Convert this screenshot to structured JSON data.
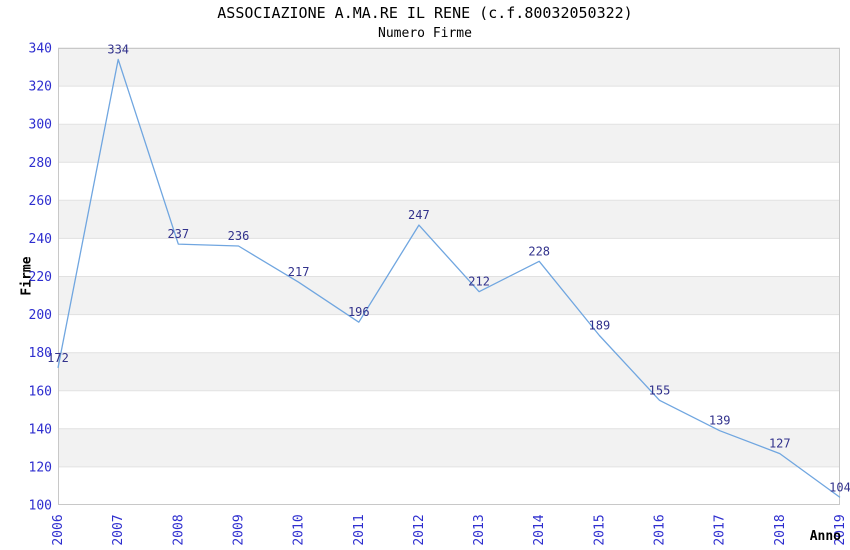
{
  "chart_data": {
    "type": "line",
    "title": "ASSOCIAZIONE A.MA.RE IL RENE (c.f.80032050322)",
    "subtitle": "Numero Firme",
    "xlabel": "Anno",
    "ylabel": "Firme",
    "categories": [
      "2006",
      "2007",
      "2008",
      "2009",
      "2010",
      "2011",
      "2012",
      "2013",
      "2014",
      "2015",
      "2016",
      "2017",
      "2018",
      "2019"
    ],
    "values": [
      172,
      334,
      237,
      236,
      217,
      196,
      247,
      212,
      228,
      189,
      155,
      139,
      127,
      104
    ],
    "ylim": [
      100,
      340
    ],
    "ytick_step": 20,
    "yticks": [
      100,
      120,
      140,
      160,
      180,
      200,
      220,
      240,
      260,
      280,
      300,
      320,
      340
    ],
    "grid": "horizontal alternating bands, gridline every 20 units",
    "legend_position": "none",
    "markers": "none, value labels above each point",
    "x_tick_rotation_deg": 90,
    "colors": {
      "line": "#70a6e0",
      "tick_label": "#2e2ecf",
      "data_label": "#32328c",
      "band": "#f2f2f2",
      "grid": "#e1e1e1",
      "frame": "#c8c8c8",
      "text": "#222222"
    }
  }
}
